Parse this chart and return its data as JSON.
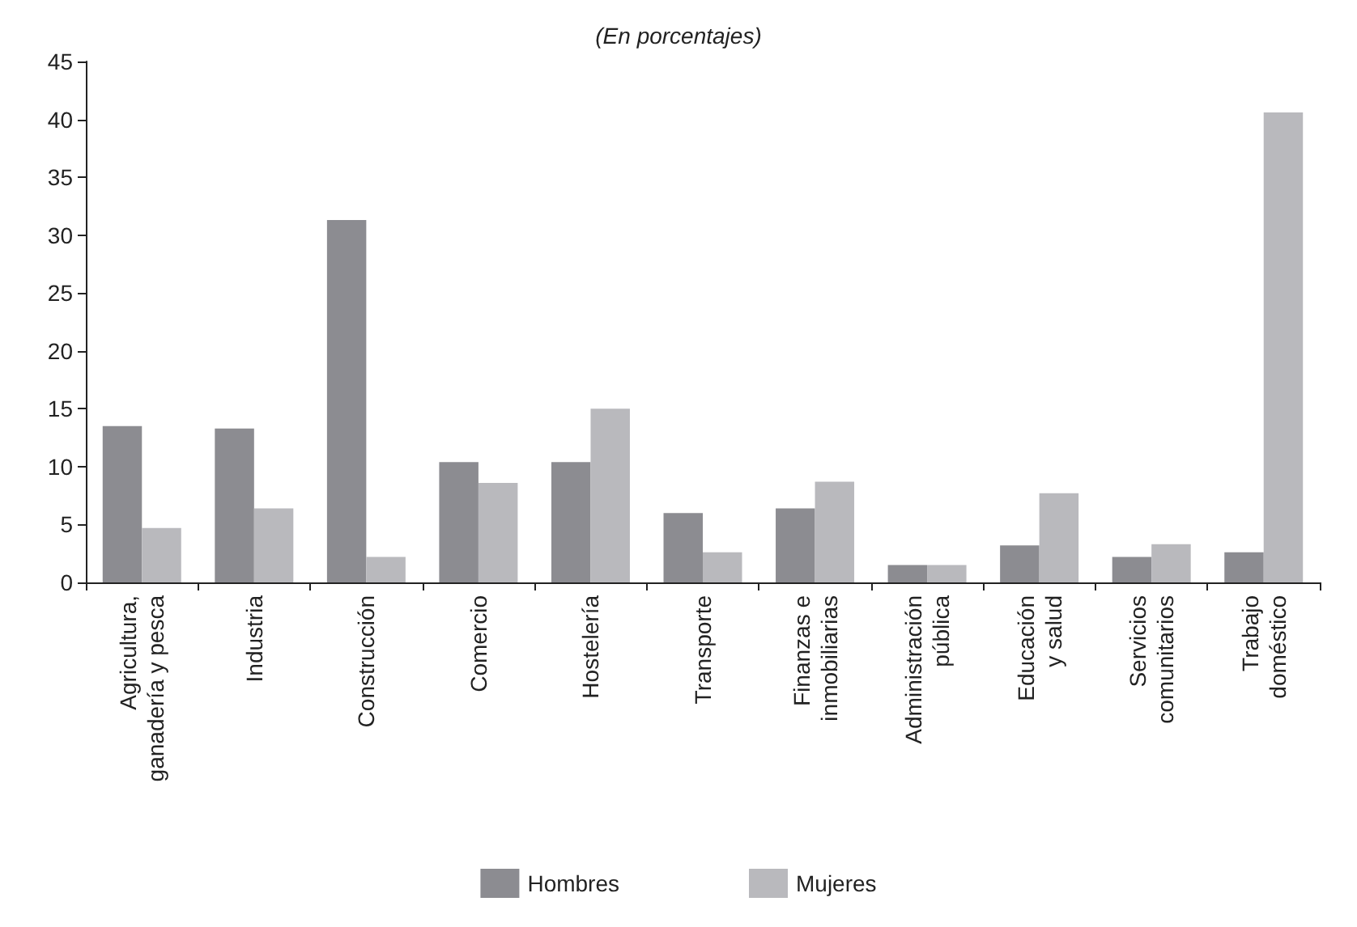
{
  "chart_data": {
    "type": "bar",
    "subtitle": "(En porcentajes)",
    "categories": [
      "Agricultura,\nganadería y pesca",
      "Industria",
      "Construcción",
      "Comercio",
      "Hostelería",
      "Transporte",
      "Finanzas e\ninmobiliarias",
      "Administración\npública",
      "Educación\ny salud",
      "Servicios\ncomunitarios",
      "Trabajo\ndoméstico"
    ],
    "series": [
      {
        "name": "Hombres",
        "color": "#8c8c91",
        "values": [
          13.5,
          13.3,
          31.3,
          10.4,
          10.4,
          6.0,
          6.4,
          1.5,
          3.2,
          2.2,
          2.6
        ]
      },
      {
        "name": "Mujeres",
        "color": "#b9b9bd",
        "values": [
          4.7,
          6.4,
          2.2,
          8.6,
          15.0,
          2.6,
          8.7,
          1.5,
          7.7,
          3.3,
          40.6
        ]
      }
    ],
    "ylim": [
      0,
      45
    ],
    "yticks": [
      0,
      5,
      10,
      15,
      20,
      25,
      30,
      35,
      40,
      45
    ],
    "grid": false,
    "legend": "bottom"
  }
}
